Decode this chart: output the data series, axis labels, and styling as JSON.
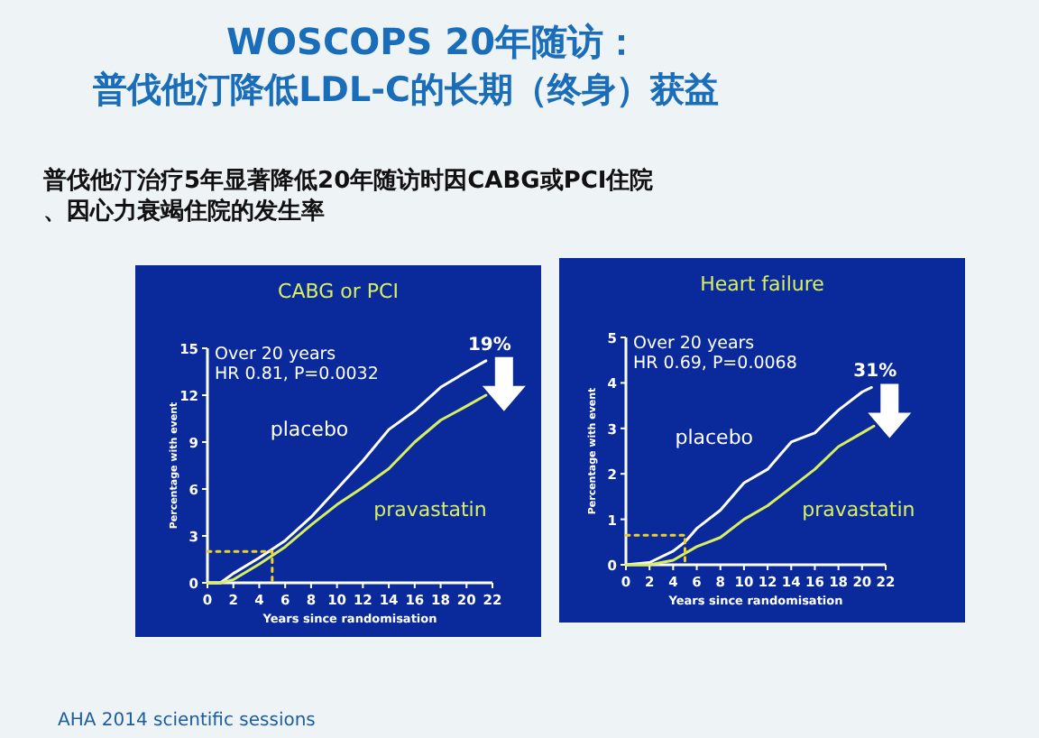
{
  "chart_data": [
    {
      "type": "other",
      "title": "WOSCOPS 20年随访：",
      "subtitle": "普伐他汀降低LDL-C的长期（终身）获益",
      "annotations": [
        "普伐他汀治疗5年显著降低20年随访时因CABG或PCI住院、因心力衰竭住院的发生率",
        "AHA 2014 scientific sessions"
      ]
    },
    {
      "type": "line",
      "title": "CABG or PCI",
      "xlabel": "Years since randomisation",
      "ylabel": "Percentage with event",
      "xlim": [
        0,
        22
      ],
      "xticks": [
        0,
        2,
        4,
        6,
        8,
        10,
        12,
        14,
        16,
        18,
        20,
        22
      ],
      "ylim": [
        0,
        15
      ],
      "yticks": [
        0,
        3,
        6,
        9,
        12,
        15
      ],
      "legend": false,
      "grid": false,
      "series": [
        {
          "name": "placebo",
          "color": "#ffffff",
          "x": [
            0,
            1,
            2,
            4,
            6,
            8,
            10,
            12,
            14,
            16,
            18,
            20,
            21.5
          ],
          "values": [
            0,
            0,
            0.6,
            1.6,
            2.7,
            4.2,
            6,
            7.8,
            9.8,
            11,
            12.5,
            13.5,
            14.2
          ]
        },
        {
          "name": "pravastatin",
          "color": "#d8f060",
          "x": [
            0,
            1,
            2,
            4,
            6,
            8,
            10,
            12,
            14,
            16,
            18,
            20,
            21.5
          ],
          "values": [
            0,
            0,
            0.2,
            1.2,
            2.3,
            3.7,
            5,
            6.1,
            7.3,
            9,
            10.4,
            11.3,
            12
          ]
        },
        {
          "color": "#f0d020",
          "line_style": "dotted",
          "x": [
            0,
            5,
            5
          ],
          "values": [
            2,
            2,
            0
          ]
        }
      ],
      "annotations": [
        "Over 20 years",
        "HR 0.81, P=0.0032",
        {
          "text": "19%",
          "x": 21.5,
          "y": 14.2
        }
      ]
    },
    {
      "type": "line",
      "title": "Heart failure",
      "xlabel": "Years since randomisation",
      "ylabel": "Percentage with event",
      "xlim": [
        0,
        22
      ],
      "xticks": [
        0,
        2,
        4,
        6,
        8,
        10,
        12,
        14,
        16,
        18,
        20,
        22
      ],
      "ylim": [
        0,
        5
      ],
      "yticks": [
        0,
        1,
        2,
        3,
        4,
        5
      ],
      "legend": false,
      "grid": false,
      "series": [
        {
          "name": "placebo",
          "color": "#ffffff",
          "x": [
            0,
            2,
            4,
            5,
            6,
            8,
            10,
            12,
            14,
            16,
            18,
            20,
            20.8
          ],
          "values": [
            0,
            0.05,
            0.3,
            0.5,
            0.8,
            1.2,
            1.8,
            2.1,
            2.7,
            2.9,
            3.4,
            3.8,
            3.9
          ]
        },
        {
          "name": "pravastatin",
          "color": "#d8f060",
          "x": [
            0,
            2,
            4,
            6,
            8,
            10,
            12,
            14,
            16,
            18,
            20,
            21
          ],
          "values": [
            0,
            0,
            0.1,
            0.4,
            0.6,
            1,
            1.3,
            1.7,
            2.1,
            2.6,
            2.9,
            3.05
          ]
        },
        {
          "color": "#f0d020",
          "line_style": "dotted",
          "x": [
            0,
            5,
            5
          ],
          "values": [
            0.65,
            0.65,
            0
          ]
        }
      ],
      "annotations": [
        "Over 20 years",
        "HR 0.69, P=0.0068",
        {
          "text": "31%",
          "x": 20.8,
          "y": 3.9
        }
      ]
    }
  ]
}
